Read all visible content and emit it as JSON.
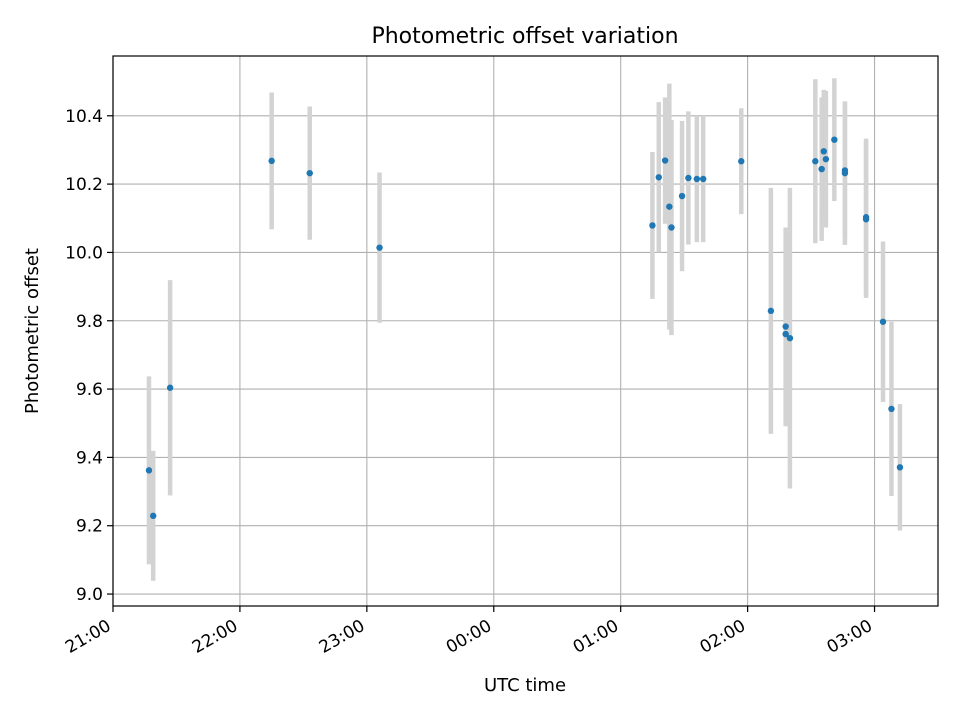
{
  "chart_data": {
    "type": "scatter",
    "title": "Photometric offset variation",
    "xlabel": "UTC time",
    "ylabel": "Photometric offset",
    "x_unit": "UTC time (hh:mm, spanning midnight)",
    "xlim": [
      "21:00",
      "03:30"
    ],
    "ylim": [
      8.965,
      10.575
    ],
    "x_ticks": [
      "21:00",
      "22:00",
      "23:00",
      "00:00",
      "01:00",
      "02:00",
      "03:00"
    ],
    "y_ticks": [
      9.0,
      9.2,
      9.4,
      9.6,
      9.8,
      10.0,
      10.2,
      10.4
    ],
    "y_tick_labels": [
      "9.0",
      "9.2",
      "9.4",
      "9.6",
      "9.8",
      "10.0",
      "10.2",
      "10.4"
    ],
    "grid": true,
    "colors": {
      "point": "#1f77b4",
      "errorbar": "#d3d3d3",
      "grid": "#b0b0b0"
    },
    "points": [
      {
        "x": "21:17",
        "y": 9.362,
        "err": 0.275
      },
      {
        "x": "21:19",
        "y": 9.229,
        "err": 0.19
      },
      {
        "x": "21:27",
        "y": 9.604,
        "err": 0.315
      },
      {
        "x": "22:15",
        "y": 10.268,
        "err": 0.2
      },
      {
        "x": "22:33",
        "y": 10.232,
        "err": 0.195
      },
      {
        "x": "23:06",
        "y": 10.014,
        "err": 0.22
      },
      {
        "x": "01:15",
        "y": 10.079,
        "err": 0.215
      },
      {
        "x": "01:18",
        "y": 10.22,
        "err": 0.22
      },
      {
        "x": "01:21",
        "y": 10.269,
        "err": 0.185
      },
      {
        "x": "01:23",
        "y": 10.134,
        "err": 0.36
      },
      {
        "x": "01:24",
        "y": 10.073,
        "err": 0.315
      },
      {
        "x": "01:29",
        "y": 10.165,
        "err": 0.22
      },
      {
        "x": "01:32",
        "y": 10.218,
        "err": 0.195
      },
      {
        "x": "01:36",
        "y": 10.215,
        "err": 0.185
      },
      {
        "x": "01:39",
        "y": 10.215,
        "err": 0.185
      },
      {
        "x": "01:57",
        "y": 10.267,
        "err": 0.155
      },
      {
        "x": "02:11",
        "y": 9.829,
        "err": 0.36
      },
      {
        "x": "02:18",
        "y": 9.761,
        "err": 0.27
      },
      {
        "x": "02:18",
        "y": 9.783,
        "err": 0.29
      },
      {
        "x": "02:20",
        "y": 9.749,
        "err": 0.44
      },
      {
        "x": "02:32",
        "y": 10.267,
        "err": 0.24
      },
      {
        "x": "02:35",
        "y": 10.244,
        "err": 0.21
      },
      {
        "x": "02:36",
        "y": 10.296,
        "err": 0.18
      },
      {
        "x": "02:37",
        "y": 10.273,
        "err": 0.2
      },
      {
        "x": "02:41",
        "y": 10.33,
        "err": 0.18
      },
      {
        "x": "02:46",
        "y": 10.24,
        "err": 0.2
      },
      {
        "x": "02:46",
        "y": 10.232,
        "err": 0.21
      },
      {
        "x": "02:56",
        "y": 10.103,
        "err": 0.23
      },
      {
        "x": "02:56",
        "y": 10.097,
        "err": 0.23
      },
      {
        "x": "03:04",
        "y": 9.797,
        "err": 0.235
      },
      {
        "x": "03:08",
        "y": 9.542,
        "err": 0.255
      },
      {
        "x": "03:12",
        "y": 9.371,
        "err": 0.185
      }
    ]
  }
}
